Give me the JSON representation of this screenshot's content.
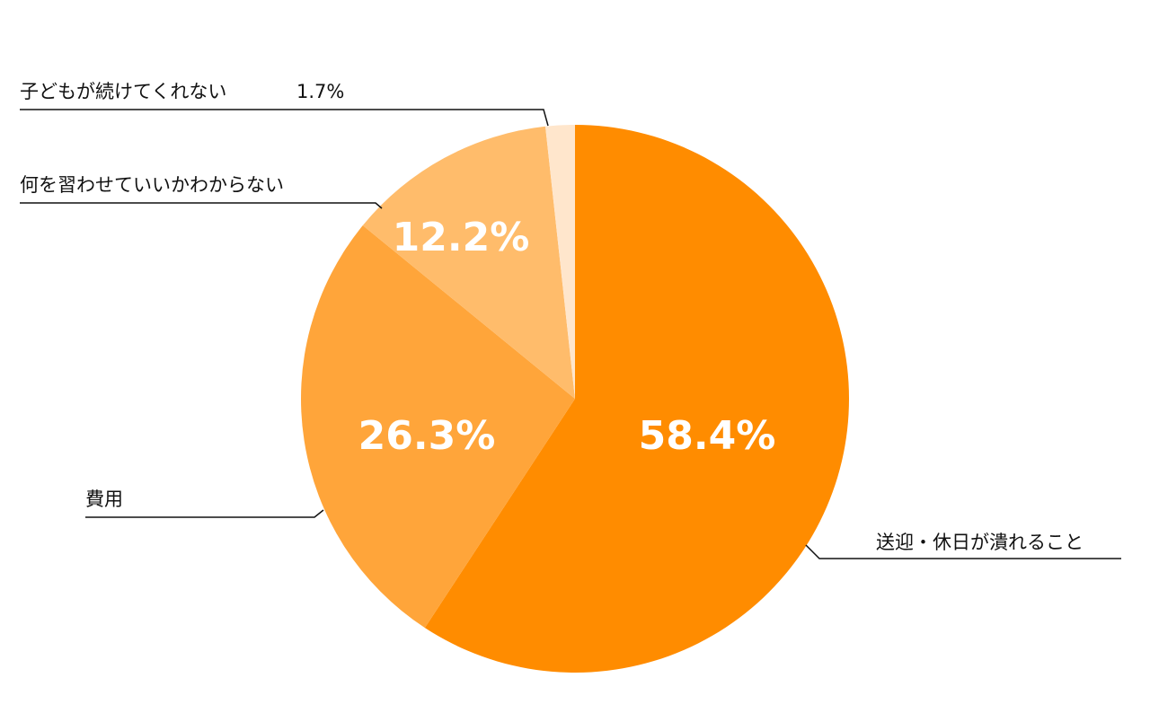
{
  "chart_data": {
    "type": "pie",
    "categories": [
      "送迎・休日が潰れること",
      "費用",
      "何を習わせていいかわからない",
      "子どもが続けてくれない"
    ],
    "values": [
      58.4,
      26.3,
      12.2,
      1.7
    ],
    "value_labels": [
      "58.4%",
      "26.3%",
      "12.2%",
      "1.7%"
    ],
    "colors": [
      "#ff8c00",
      "#ffa53a",
      "#ffbc6b",
      "#ffe6cc"
    ]
  }
}
